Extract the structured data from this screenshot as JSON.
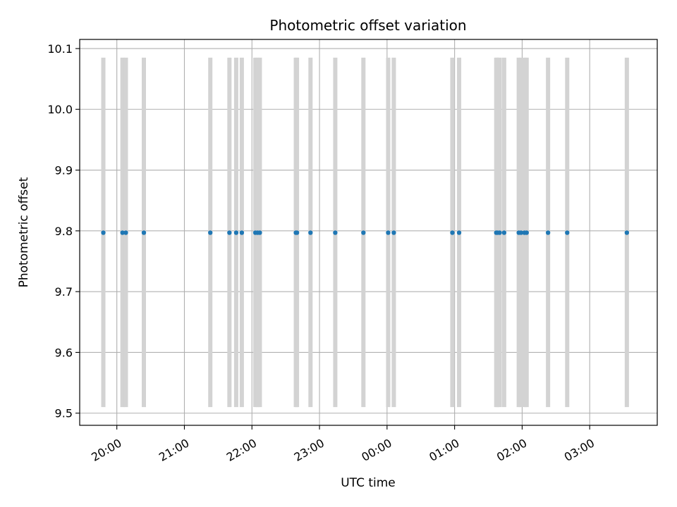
{
  "chart_data": {
    "type": "scatter",
    "title": "Photometric offset variation",
    "xlabel": "UTC time",
    "ylabel": "Photometric offset",
    "grid": true,
    "xlim": [
      "19:27",
      "04:00"
    ],
    "ylim": [
      9.48,
      10.115
    ],
    "x_ticks": [
      "20:00",
      "21:00",
      "22:00",
      "23:00",
      "00:00",
      "01:00",
      "02:00",
      "03:00"
    ],
    "y_ticks": [
      9.5,
      9.6,
      9.7,
      9.8,
      9.9,
      10.0,
      10.1
    ],
    "bar_range": [
      9.51,
      10.085
    ],
    "colors": {
      "points": "#1f77b4",
      "bars": "#d3d3d3",
      "grid": "#b0b0b0"
    },
    "times": [
      "19:48",
      "20:05",
      "20:08",
      "20:24",
      "21:23",
      "21:40",
      "21:46",
      "21:51",
      "22:03",
      "22:05",
      "22:07",
      "22:39",
      "22:40",
      "22:52",
      "23:14",
      "23:39",
      "00:01",
      "00:06",
      "00:58",
      "01:04",
      "01:37",
      "01:38",
      "01:40",
      "01:44",
      "01:57",
      "01:59",
      "02:02",
      "02:04",
      "02:23",
      "02:40",
      "03:33"
    ],
    "values": [
      9.797,
      9.797,
      9.797,
      9.797,
      9.797,
      9.797,
      9.797,
      9.797,
      9.797,
      9.797,
      9.797,
      9.797,
      9.797,
      9.797,
      9.797,
      9.797,
      9.797,
      9.797,
      9.797,
      9.797,
      9.797,
      9.797,
      9.797,
      9.797,
      9.797,
      9.797,
      9.797,
      9.797,
      9.797,
      9.797,
      9.797
    ]
  }
}
